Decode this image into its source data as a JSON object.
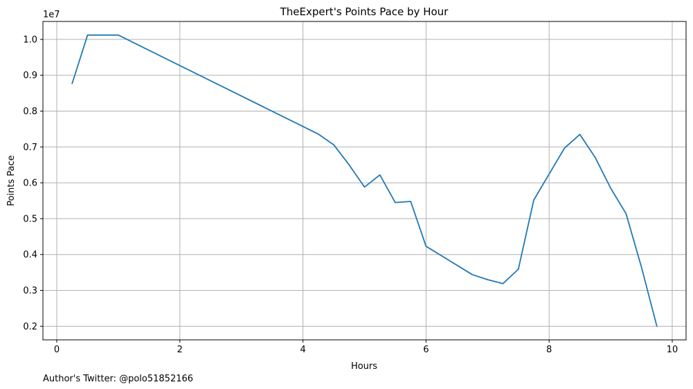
{
  "chart_data": {
    "type": "line",
    "title": "TheExpert's Points Pace by Hour",
    "xlabel": "Hours",
    "ylabel": "Points Pace",
    "y_offset_label": "1e7",
    "xlim": [
      -0.225,
      10.225
    ],
    "ylim": [
      1.62,
      10.5
    ],
    "x_ticks": [
      0,
      2,
      4,
      6,
      8,
      10
    ],
    "x_tick_labels": [
      "0",
      "2",
      "4",
      "6",
      "8",
      "10"
    ],
    "y_ticks": [
      2,
      3,
      4,
      5,
      6,
      7,
      8,
      9,
      10
    ],
    "y_tick_labels": [
      "0.2",
      "0.3",
      "0.4",
      "0.5",
      "0.6",
      "0.7",
      "0.8",
      "0.9",
      "1.0"
    ],
    "grid": true,
    "series": [
      {
        "color": "#1f77b4",
        "x": [
          0.25,
          0.5,
          0.75,
          1.0,
          4.25,
          4.5,
          4.75,
          5.0,
          5.25,
          5.5,
          5.75,
          6.0,
          6.75,
          7.0,
          7.25,
          7.5,
          7.75,
          8.25,
          8.5,
          8.75,
          9.0,
          9.25,
          9.5,
          9.75
        ],
        "y": [
          8.77,
          10.12,
          10.12,
          10.12,
          7.36,
          7.06,
          6.5,
          5.88,
          6.22,
          5.45,
          5.48,
          4.23,
          3.44,
          3.3,
          3.19,
          3.59,
          5.52,
          6.97,
          7.35,
          6.7,
          5.85,
          5.14,
          3.65,
          2.0
        ]
      }
    ]
  },
  "footer": {
    "text": "Author's Twitter: @polo51852166"
  }
}
